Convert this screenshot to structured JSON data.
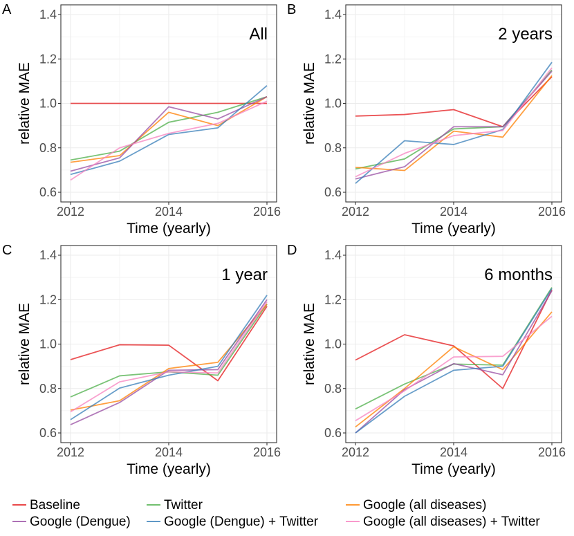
{
  "chart_data": {
    "type": "line",
    "x_values": [
      2012,
      2013,
      2014,
      2015,
      2016
    ],
    "xlim": [
      2012,
      2016
    ],
    "ylim": [
      0.6,
      1.4
    ],
    "x_ticks": [
      "2012",
      "2014",
      "2016"
    ],
    "y_ticks": [
      "0.6",
      "0.8",
      "1.0",
      "1.2",
      "1.4"
    ],
    "xlabel": "Time (yearly)",
    "ylabel": "relative MAE",
    "legend_position": "bottom",
    "grid": true,
    "series_meta": [
      {
        "name": "Baseline",
        "color": "#e41a1c"
      },
      {
        "name": "Twitter",
        "color": "#4daf4a"
      },
      {
        "name": "Google (all diseases)",
        "color": "#ff7f00"
      },
      {
        "name": "Google (Dengue)",
        "color": "#984ea3"
      },
      {
        "name": "Google (Dengue) + Twitter",
        "color": "#377eb8"
      },
      {
        "name": "Google (all diseases) + Twitter",
        "color": "#f781bf"
      }
    ],
    "panels": [
      {
        "letter": "A",
        "title": "All",
        "series": [
          {
            "name": "Baseline",
            "values": [
              1.0,
              1.0,
              1.0,
              1.0,
              1.0
            ]
          },
          {
            "name": "Twitter",
            "values": [
              0.745,
              0.785,
              0.915,
              0.96,
              1.03
            ]
          },
          {
            "name": "Google (all diseases)",
            "values": [
              0.735,
              0.765,
              0.96,
              0.9,
              1.03
            ]
          },
          {
            "name": "Google (Dengue)",
            "values": [
              0.695,
              0.755,
              0.985,
              0.93,
              1.03
            ]
          },
          {
            "name": "Google (Dengue) + Twitter",
            "values": [
              0.68,
              0.74,
              0.86,
              0.89,
              1.08
            ]
          },
          {
            "name": "Google (all diseases) + Twitter",
            "values": [
              0.655,
              0.8,
              0.865,
              0.91,
              1.01
            ]
          }
        ]
      },
      {
        "letter": "B",
        "title": "2 years",
        "series": [
          {
            "name": "Baseline",
            "values": [
              0.943,
              0.95,
              0.972,
              0.895,
              1.12
            ]
          },
          {
            "name": "Twitter",
            "values": [
              0.705,
              0.75,
              0.885,
              0.895,
              1.15
            ]
          },
          {
            "name": "Google (all diseases)",
            "values": [
              0.712,
              0.698,
              0.875,
              0.848,
              1.125
            ]
          },
          {
            "name": "Google (Dengue)",
            "values": [
              0.66,
              0.715,
              0.895,
              0.895,
              1.145
            ]
          },
          {
            "name": "Google (Dengue) + Twitter",
            "values": [
              0.64,
              0.832,
              0.815,
              0.882,
              1.185
            ]
          },
          {
            "name": "Google (all diseases) + Twitter",
            "values": [
              0.67,
              0.775,
              0.855,
              0.878,
              1.16
            ]
          }
        ]
      },
      {
        "letter": "C",
        "title": "1 year",
        "series": [
          {
            "name": "Baseline",
            "values": [
              0.93,
              0.997,
              0.995,
              0.835,
              1.17
            ]
          },
          {
            "name": "Twitter",
            "values": [
              0.762,
              0.857,
              0.875,
              0.86,
              1.18
            ]
          },
          {
            "name": "Google (all diseases)",
            "values": [
              0.703,
              0.745,
              0.89,
              0.918,
              1.18
            ]
          },
          {
            "name": "Google (Dengue)",
            "values": [
              0.637,
              0.737,
              0.882,
              0.885,
              1.2
            ]
          },
          {
            "name": "Google (Dengue) + Twitter",
            "values": [
              0.66,
              0.802,
              0.86,
              0.9,
              1.22
            ]
          },
          {
            "name": "Google (all diseases) + Twitter",
            "values": [
              0.695,
              0.83,
              0.875,
              0.87,
              1.19
            ]
          }
        ]
      },
      {
        "letter": "D",
        "title": "6 months",
        "series": [
          {
            "name": "Baseline",
            "values": [
              0.928,
              1.042,
              0.992,
              0.8,
              1.245
            ]
          },
          {
            "name": "Twitter",
            "values": [
              0.708,
              0.82,
              0.91,
              0.905,
              1.255
            ]
          },
          {
            "name": "Google (all diseases)",
            "values": [
              0.627,
              0.8,
              0.988,
              0.885,
              1.145
            ]
          },
          {
            "name": "Google (Dengue)",
            "values": [
              0.6,
              0.795,
              0.912,
              0.862,
              1.24
            ]
          },
          {
            "name": "Google (Dengue) + Twitter",
            "values": [
              0.6,
              0.765,
              0.882,
              0.9,
              1.25
            ]
          },
          {
            "name": "Google (all diseases) + Twitter",
            "values": [
              0.655,
              0.79,
              0.942,
              0.945,
              1.125
            ]
          }
        ]
      }
    ]
  }
}
